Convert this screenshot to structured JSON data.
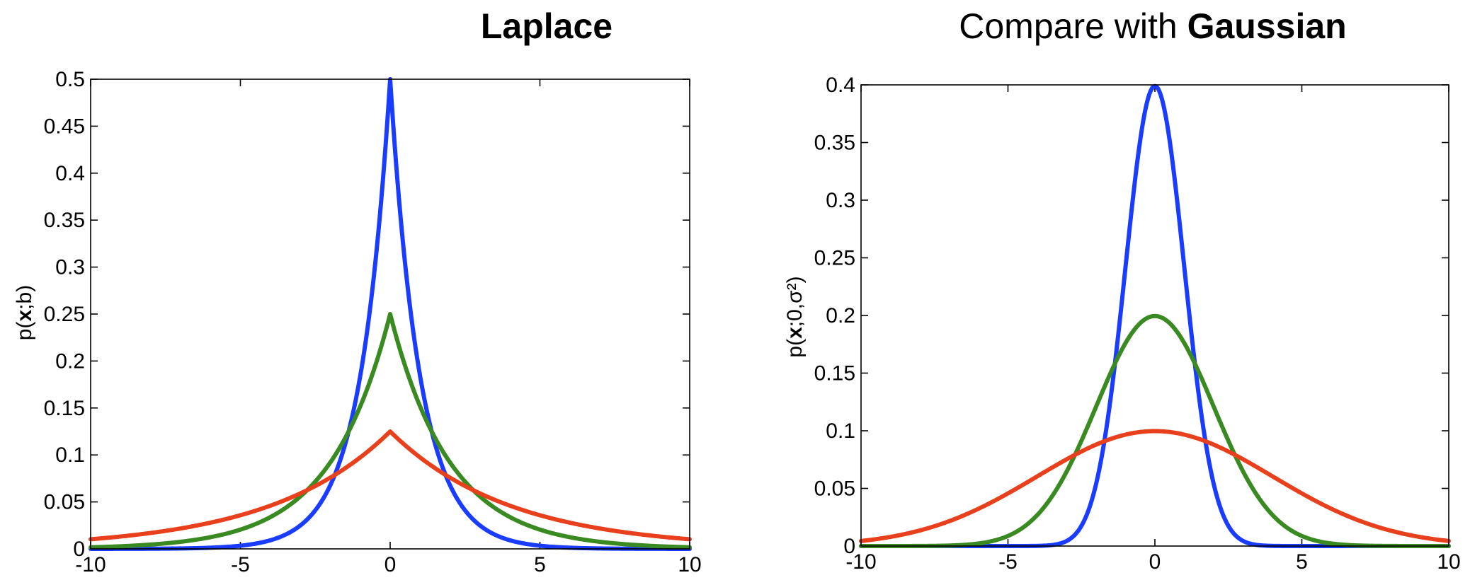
{
  "chart_data": [
    {
      "type": "line",
      "title_bold": "Laplace",
      "title_regular": "",
      "xlabel": "",
      "ylabel_prefix": "p(",
      "ylabel_bold": "x",
      "ylabel_suffix": ";b)",
      "xlim": [
        -10,
        10
      ],
      "ylim": [
        0,
        0.5
      ],
      "x_ticks": [
        -10,
        -5,
        0,
        5,
        10
      ],
      "x_tick_labels": [
        "-10",
        "-5",
        "0",
        "5",
        "10"
      ],
      "y_ticks": [
        0,
        0.05,
        0.1,
        0.15,
        0.2,
        0.25,
        0.3,
        0.35,
        0.4,
        0.45,
        0.5
      ],
      "y_tick_labels": [
        "0",
        "0.05",
        "0.1",
        "0.15",
        "0.2",
        "0.25",
        "0.3",
        "0.35",
        "0.4",
        "0.45",
        "0.5"
      ],
      "grid": false,
      "legend": "none",
      "series": [
        {
          "color": "#1a3cff",
          "x": [
            -10,
            -8,
            -6,
            -4,
            -3,
            -2,
            -1.5,
            -1,
            -0.5,
            0,
            0.5,
            1,
            1.5,
            2,
            3,
            4,
            6,
            8,
            10
          ],
          "values": [
            2.27e-05,
            0.000168,
            0.00124,
            0.00916,
            0.0249,
            0.0677,
            0.1116,
            0.1839,
            0.3033,
            0.5,
            0.3033,
            0.1839,
            0.1116,
            0.0677,
            0.0249,
            0.00916,
            0.00124,
            0.000168,
            2.27e-05
          ]
        },
        {
          "color": "#3a8a22",
          "x": [
            -10,
            -8,
            -6,
            -4,
            -3,
            -2,
            -1.5,
            -1,
            -0.5,
            0,
            0.5,
            1,
            1.5,
            2,
            3,
            4,
            6,
            8,
            10
          ],
          "values": [
            0.00168,
            0.00458,
            0.0124,
            0.0338,
            0.0558,
            0.092,
            0.1181,
            0.1516,
            0.1947,
            0.25,
            0.1947,
            0.1516,
            0.1181,
            0.092,
            0.0558,
            0.0338,
            0.0124,
            0.00458,
            0.00168
          ]
        },
        {
          "color": "#e8401c",
          "x": [
            -10,
            -8,
            -6,
            -4,
            -3,
            -2,
            -1.5,
            -1,
            -0.5,
            0,
            0.5,
            1,
            1.5,
            2,
            3,
            4,
            6,
            8,
            10
          ],
          "values": [
            0.0103,
            0.0169,
            0.0279,
            0.046,
            0.059,
            0.0758,
            0.0859,
            0.0974,
            0.1103,
            0.125,
            0.1103,
            0.0974,
            0.0859,
            0.0758,
            0.059,
            0.046,
            0.0279,
            0.0169,
            0.0103
          ]
        }
      ]
    },
    {
      "type": "line",
      "title_regular": "Compare with ",
      "title_bold": "Gaussian",
      "xlabel": "",
      "ylabel_prefix": "p(",
      "ylabel_bold": "x",
      "ylabel_suffix": ";0,σ²)",
      "xlim": [
        -10,
        10
      ],
      "ylim": [
        0,
        0.4
      ],
      "x_ticks": [
        -10,
        -5,
        0,
        5,
        10
      ],
      "x_tick_labels": [
        "-10",
        "-5",
        "0",
        "5",
        "10"
      ],
      "y_ticks": [
        0,
        0.05,
        0.1,
        0.15,
        0.2,
        0.25,
        0.3,
        0.35,
        0.4
      ],
      "y_tick_labels": [
        "0",
        "0.05",
        "0.1",
        "0.15",
        "0.2",
        "0.25",
        "0.3",
        "0.35",
        "0.4"
      ],
      "grid": false,
      "legend": "none",
      "series": [
        {
          "color": "#1a3cff",
          "x": [
            -10,
            -5,
            -4,
            -3.5,
            -3,
            -2.5,
            -2,
            -1.5,
            -1,
            -0.5,
            0,
            0.5,
            1,
            1.5,
            2,
            2.5,
            3,
            3.5,
            4,
            5,
            10
          ],
          "values": [
            0,
            1.5e-06,
            0.00013,
            0.00087,
            0.0044,
            0.0175,
            0.054,
            0.1295,
            0.242,
            0.352,
            0.399,
            0.352,
            0.242,
            0.1295,
            0.054,
            0.0175,
            0.0044,
            0.00087,
            0.00013,
            1.5e-06,
            0
          ]
        },
        {
          "color": "#3a8a22",
          "x": [
            -10,
            -8,
            -7,
            -6,
            -5,
            -4,
            -3,
            -2,
            -1,
            0,
            1,
            2,
            3,
            4,
            5,
            6,
            7,
            8,
            10
          ],
          "values": [
            7e-07,
            7e-05,
            0.00044,
            0.0022,
            0.0088,
            0.027,
            0.0648,
            0.121,
            0.176,
            0.1995,
            0.176,
            0.121,
            0.0648,
            0.027,
            0.0088,
            0.0022,
            0.00044,
            7e-05,
            7e-07
          ]
        },
        {
          "color": "#e8401c",
          "x": [
            -10,
            -9,
            -8,
            -7,
            -6,
            -5,
            -4,
            -3,
            -2,
            -1,
            0,
            1,
            2,
            3,
            4,
            5,
            6,
            7,
            8,
            9,
            10
          ],
          "values": [
            0.0054,
            0.0104,
            0.018,
            0.0286,
            0.0409,
            0.054,
            0.0657,
            0.0739,
            0.0798,
            0.088,
            0.0997,
            0.088,
            0.0798,
            0.0739,
            0.0657,
            0.054,
            0.0409,
            0.0286,
            0.018,
            0.0104,
            0.0054
          ]
        }
      ]
    }
  ]
}
